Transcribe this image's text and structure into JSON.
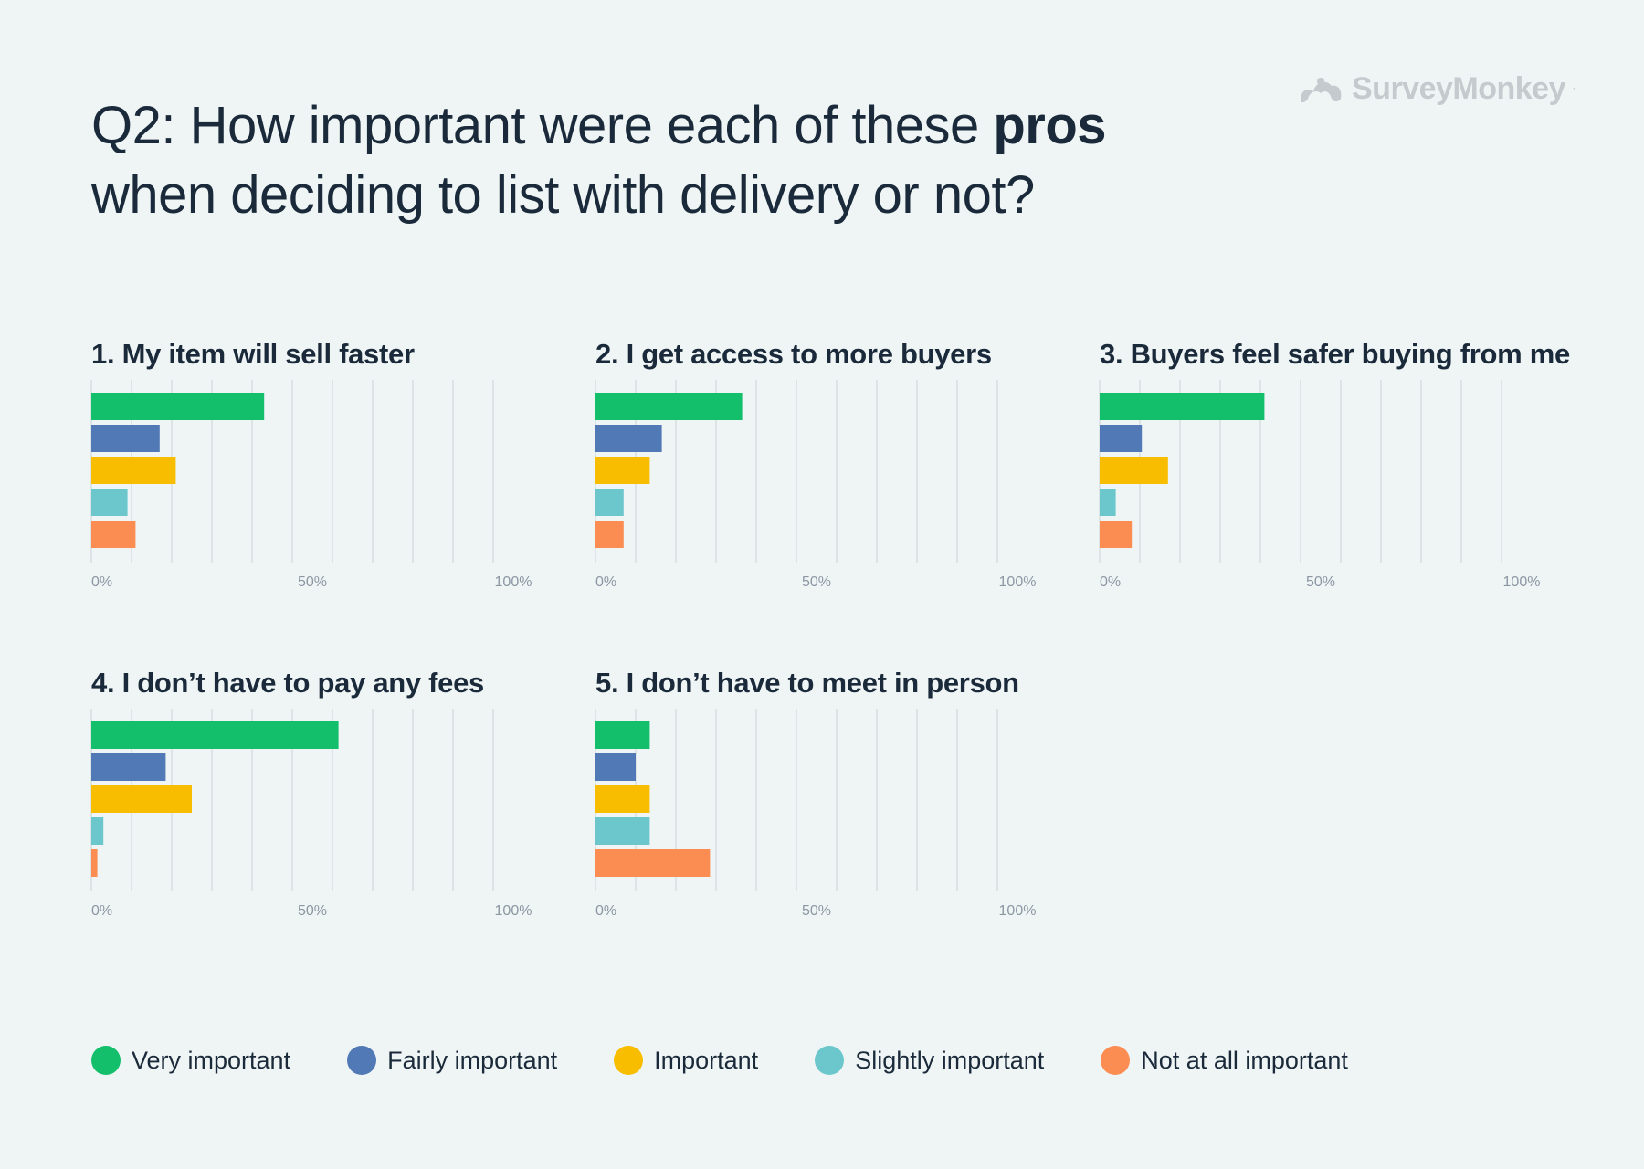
{
  "header": {
    "title_part1": "Q2: How important were each of these ",
    "title_bold": "pros",
    "title_part2": "when deciding to list with delivery or not?",
    "logo_text": "SurveyMonkey",
    "logo_mark": "·"
  },
  "colors": {
    "very": "#13bf6b",
    "fairly": "#5179b5",
    "important": "#f9bd00",
    "slightly": "#6cc7cd",
    "not": "#fb8d53",
    "grid": "#dde4e6",
    "tick": "#8c97a3"
  },
  "legend": [
    {
      "label": "Very important",
      "color": "#13bf6b"
    },
    {
      "label": "Fairly important",
      "color": "#5179b5"
    },
    {
      "label": "Important",
      "color": "#f9bd00"
    },
    {
      "label": "Slightly important",
      "color": "#6cc7cd"
    },
    {
      "label": "Not at all important",
      "color": "#fb8d53"
    }
  ],
  "chart_data": [
    {
      "type": "bar",
      "orientation": "horizontal",
      "title": "1. My item will sell faster",
      "categories": [
        "Very important",
        "Fairly important",
        "Important",
        "Slightly important",
        "Not at all important"
      ],
      "values": [
        43,
        17,
        21,
        9,
        11
      ],
      "xlim": [
        0,
        100
      ],
      "xticks": [
        "0%",
        "50%",
        "100%"
      ],
      "grid": true
    },
    {
      "type": "bar",
      "orientation": "horizontal",
      "title": "2. I get access to more buyers",
      "categories": [
        "Very important",
        "Fairly important",
        "Important",
        "Slightly important",
        "Not at all important"
      ],
      "values": [
        36.5,
        16.5,
        13.5,
        7,
        7
      ],
      "xlim": [
        0,
        100
      ],
      "xticks": [
        "0%",
        "50%",
        "100%"
      ],
      "grid": true
    },
    {
      "type": "bar",
      "orientation": "horizontal",
      "title": "3. Buyers feel safer buying from me",
      "categories": [
        "Very important",
        "Fairly important",
        "Important",
        "Slightly important",
        "Not at all important"
      ],
      "values": [
        41,
        10.5,
        17,
        4,
        8
      ],
      "xlim": [
        0,
        100
      ],
      "xticks": [
        "0%",
        "50%",
        "100%"
      ],
      "grid": true
    },
    {
      "type": "bar",
      "orientation": "horizontal",
      "title": "4. I don’t have to pay any fees",
      "categories": [
        "Very important",
        "Fairly important",
        "Important",
        "Slightly important",
        "Not at all important"
      ],
      "values": [
        61.5,
        18.5,
        25,
        3,
        1.5
      ],
      "xlim": [
        0,
        100
      ],
      "xticks": [
        "0%",
        "50%",
        "100%"
      ],
      "grid": true
    },
    {
      "type": "bar",
      "orientation": "horizontal",
      "title": "5. I don’t have to meet in person",
      "categories": [
        "Very important",
        "Fairly important",
        "Important",
        "Slightly important",
        "Not at all important"
      ],
      "values": [
        13.5,
        10,
        13.5,
        13.5,
        28.5
      ],
      "xlim": [
        0,
        100
      ],
      "xticks": [
        "0%",
        "50%",
        "100%"
      ],
      "grid": true
    }
  ]
}
